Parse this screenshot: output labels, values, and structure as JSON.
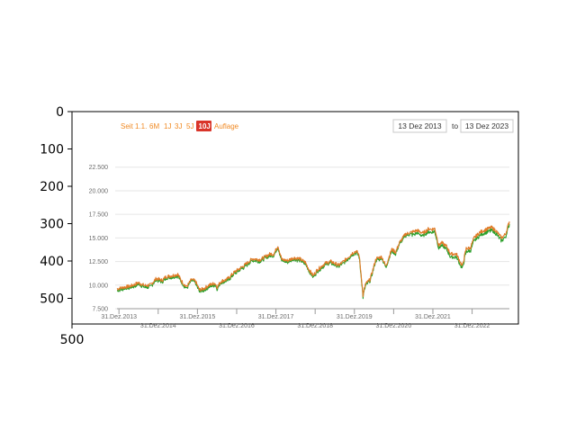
{
  "figure": {
    "outer_yticks": [
      "0",
      "100",
      "200",
      "300",
      "400",
      "500"
    ],
    "outer_xticks": [
      "500"
    ]
  },
  "toolbar": {
    "ranges": [
      "Seit 1.1.",
      "6M",
      "1J",
      "3J",
      "5J",
      "10J",
      "Auflage"
    ],
    "active_range": "10J",
    "from_date": "13 Dez 2013",
    "to_label": "to",
    "to_date": "13 Dez 2023"
  },
  "colors": {
    "series_a": "#2ca02c",
    "series_b": "#e07b28",
    "range_accent": "#f08a24",
    "active_bg": "#d9352a"
  },
  "chart_data": {
    "type": "line",
    "title": "",
    "xlabel": "",
    "ylabel": "",
    "ylim": [
      7500,
      24000
    ],
    "yticks": [
      "7.500",
      "10.000",
      "12.500",
      "15.000",
      "17.500",
      "20.000",
      "22.500"
    ],
    "ytick_values": [
      7500,
      10000,
      12500,
      15000,
      17500,
      20000,
      22500
    ],
    "x_tick_labels": [
      "31.Dez.2013",
      "31.Dez.2014",
      "31.Dez.2015",
      "31.Dez.2016",
      "31.Dez.2017",
      "31.Dez.2018",
      "31.Dez.2019",
      "31.Dez.2020",
      "31.Dez.2021",
      "31.Dez.2022"
    ],
    "x_tick_years": [
      2014.0,
      2015.0,
      2016.0,
      2017.0,
      2018.0,
      2019.0,
      2020.0,
      2021.0,
      2022.0,
      2023.0
    ],
    "xlim": [
      2013.95,
      2023.95
    ],
    "grid": true,
    "series": [
      {
        "values": [
          [
            2013.95,
            9600
          ],
          [
            2014.1,
            9750
          ],
          [
            2014.3,
            9900
          ],
          [
            2014.5,
            10250
          ],
          [
            2014.65,
            9950
          ],
          [
            2014.8,
            10000
          ],
          [
            2014.95,
            10700
          ],
          [
            2015.1,
            10500
          ],
          [
            2015.2,
            10900
          ],
          [
            2015.35,
            11000
          ],
          [
            2015.5,
            11150
          ],
          [
            2015.6,
            10400
          ],
          [
            2015.72,
            9800
          ],
          [
            2015.85,
            10600
          ],
          [
            2015.95,
            10400
          ],
          [
            2016.05,
            9500
          ],
          [
            2016.15,
            9600
          ],
          [
            2016.3,
            10000
          ],
          [
            2016.45,
            10200
          ],
          [
            2016.5,
            9800
          ],
          [
            2016.6,
            10400
          ],
          [
            2016.75,
            10600
          ],
          [
            2016.95,
            11400
          ],
          [
            2017.2,
            12100
          ],
          [
            2017.4,
            12800
          ],
          [
            2017.6,
            12700
          ],
          [
            2017.85,
            13300
          ],
          [
            2017.95,
            13300
          ],
          [
            2018.05,
            14200
          ],
          [
            2018.15,
            12700
          ],
          [
            2018.3,
            12600
          ],
          [
            2018.45,
            12900
          ],
          [
            2018.6,
            12800
          ],
          [
            2018.75,
            12400
          ],
          [
            2018.85,
            11600
          ],
          [
            2018.95,
            11000
          ],
          [
            2019.05,
            11600
          ],
          [
            2019.25,
            12300
          ],
          [
            2019.4,
            12500
          ],
          [
            2019.6,
            12100
          ],
          [
            2019.75,
            12600
          ],
          [
            2019.95,
            13400
          ],
          [
            2020.05,
            13600
          ],
          [
            2020.12,
            13200
          ],
          [
            2020.18,
            10800
          ],
          [
            2020.22,
            8900
          ],
          [
            2020.28,
            10100
          ],
          [
            2020.4,
            10600
          ],
          [
            2020.55,
            12800
          ],
          [
            2020.7,
            13000
          ],
          [
            2020.8,
            12000
          ],
          [
            2020.95,
            13800
          ],
          [
            2021.05,
            13500
          ],
          [
            2021.15,
            14500
          ],
          [
            2021.3,
            15400
          ],
          [
            2021.45,
            15600
          ],
          [
            2021.6,
            15800
          ],
          [
            2021.75,
            15500
          ],
          [
            2021.9,
            16000
          ],
          [
            2021.95,
            15900
          ],
          [
            2022.05,
            16000
          ],
          [
            2022.15,
            14200
          ],
          [
            2022.22,
            14500
          ],
          [
            2022.35,
            14100
          ],
          [
            2022.45,
            13300
          ],
          [
            2022.6,
            13300
          ],
          [
            2022.75,
            12000
          ],
          [
            2022.85,
            13900
          ],
          [
            2022.95,
            13900
          ],
          [
            2023.05,
            15000
          ],
          [
            2023.2,
            15600
          ],
          [
            2023.35,
            15900
          ],
          [
            2023.5,
            16100
          ],
          [
            2023.6,
            15800
          ],
          [
            2023.75,
            15000
          ],
          [
            2023.85,
            15400
          ],
          [
            2023.95,
            16750
          ]
        ]
      },
      {
        "values": [
          [
            2013.95,
            9600
          ],
          [
            2014.1,
            9750
          ],
          [
            2014.3,
            9900
          ],
          [
            2014.5,
            10250
          ],
          [
            2014.65,
            9950
          ],
          [
            2014.8,
            10000
          ],
          [
            2014.95,
            10700
          ],
          [
            2015.1,
            10500
          ],
          [
            2015.2,
            10900
          ],
          [
            2015.35,
            11000
          ],
          [
            2015.5,
            11150
          ],
          [
            2015.6,
            10400
          ],
          [
            2015.72,
            9800
          ],
          [
            2015.85,
            10600
          ],
          [
            2015.95,
            10400
          ],
          [
            2016.05,
            9500
          ],
          [
            2016.15,
            9600
          ],
          [
            2016.3,
            10000
          ],
          [
            2016.45,
            10200
          ],
          [
            2016.5,
            9800
          ],
          [
            2016.6,
            10400
          ],
          [
            2016.75,
            10600
          ],
          [
            2016.95,
            11400
          ],
          [
            2017.2,
            12100
          ],
          [
            2017.4,
            12800
          ],
          [
            2017.6,
            12700
          ],
          [
            2017.85,
            13300
          ],
          [
            2017.95,
            13300
          ],
          [
            2018.05,
            14200
          ],
          [
            2018.15,
            12700
          ],
          [
            2018.3,
            12600
          ],
          [
            2018.45,
            12900
          ],
          [
            2018.6,
            12800
          ],
          [
            2018.75,
            12400
          ],
          [
            2018.85,
            11600
          ],
          [
            2018.95,
            11000
          ],
          [
            2019.05,
            11600
          ],
          [
            2019.25,
            12300
          ],
          [
            2019.4,
            12500
          ],
          [
            2019.6,
            12100
          ],
          [
            2019.75,
            12600
          ],
          [
            2019.95,
            13400
          ],
          [
            2020.05,
            13600
          ],
          [
            2020.12,
            13200
          ],
          [
            2020.18,
            10800
          ],
          [
            2020.22,
            8900
          ],
          [
            2020.28,
            10100
          ],
          [
            2020.4,
            10600
          ],
          [
            2020.55,
            12800
          ],
          [
            2020.7,
            13000
          ],
          [
            2020.8,
            12000
          ],
          [
            2020.95,
            13800
          ],
          [
            2021.05,
            13500
          ],
          [
            2021.15,
            14500
          ],
          [
            2021.3,
            15400
          ],
          [
            2021.45,
            15600
          ],
          [
            2021.6,
            15800
          ],
          [
            2021.75,
            15500
          ],
          [
            2021.9,
            16000
          ],
          [
            2021.95,
            15900
          ],
          [
            2022.05,
            16000
          ],
          [
            2022.15,
            14200
          ],
          [
            2022.22,
            14500
          ],
          [
            2022.35,
            14100
          ],
          [
            2022.45,
            13300
          ],
          [
            2022.6,
            13300
          ],
          [
            2022.75,
            12000
          ],
          [
            2022.85,
            13900
          ],
          [
            2022.95,
            13900
          ],
          [
            2023.05,
            15000
          ],
          [
            2023.2,
            15600
          ],
          [
            2023.35,
            15900
          ],
          [
            2023.5,
            16100
          ],
          [
            2023.6,
            15800
          ],
          [
            2023.75,
            15000
          ],
          [
            2023.85,
            15400
          ],
          [
            2023.95,
            16750
          ]
        ]
      }
    ]
  }
}
